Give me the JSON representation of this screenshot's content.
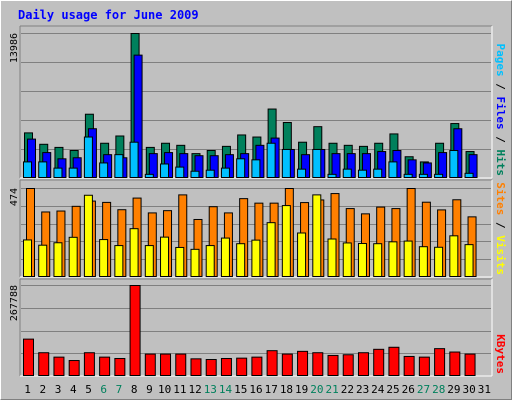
{
  "title": "Daily usage for June 2009",
  "colors": {
    "background": "#c0c0c0",
    "title": "#0000ff",
    "hits": "#00805c",
    "files": "#0000ff",
    "pages": "#00c0ff",
    "visits": "#ffff00",
    "sites": "#ff8000",
    "kbytes": "#ff0000",
    "weekend": "#00805c"
  },
  "panels": {
    "top": {
      "max_label": "13986",
      "legend": [
        "Pages",
        "Files",
        "Hits"
      ]
    },
    "middle": {
      "max_label": "474",
      "legend": [
        "Sites",
        "Visits"
      ]
    },
    "bottom": {
      "max_label": "267788",
      "legend": [
        "KBytes"
      ]
    }
  },
  "chart_data": {
    "type": "bar",
    "title": "Daily usage for June 2009",
    "categories": [
      "1",
      "2",
      "3",
      "4",
      "5",
      "6",
      "7",
      "8",
      "9",
      "10",
      "11",
      "12",
      "13",
      "14",
      "15",
      "16",
      "17",
      "18",
      "19",
      "20",
      "21",
      "22",
      "23",
      "24",
      "25",
      "26",
      "27",
      "28",
      "29",
      "30",
      "31"
    ],
    "weekend_days": [
      "6",
      "7",
      "13",
      "14",
      "20",
      "21",
      "27",
      "28"
    ],
    "panels": [
      {
        "name": "top",
        "ylim": [
          0,
          13986
        ],
        "series": [
          {
            "name": "Hits",
            "values": [
              4400,
              3300,
              3000,
              2700,
              6200,
              3400,
              4100,
              13986,
              3000,
              3400,
              3200,
              2400,
              2700,
              3100,
              4200,
              4000,
              6700,
              5400,
              3500,
              5000,
              3400,
              3200,
              3100,
              3400,
              4300,
              2100,
              1600,
              3400,
              5300,
              2600,
              0
            ]
          },
          {
            "name": "Files",
            "values": [
              3800,
              2500,
              1900,
              2000,
              4800,
              2300,
              2000,
              11900,
              2400,
              2500,
              2400,
              2200,
              2200,
              2300,
              2400,
              3200,
              3900,
              2800,
              2300,
              2800,
              2400,
              2400,
              2400,
              2600,
              2700,
              1800,
              1500,
              2500,
              4800,
              2300,
              0
            ]
          },
          {
            "name": "Pages",
            "values": [
              1600,
              1600,
              1000,
              1000,
              4000,
              1500,
              2300,
              3500,
              400,
              1400,
              1100,
              700,
              800,
              1000,
              1900,
              1800,
              3400,
              2800,
              900,
              2800,
              400,
              900,
              800,
              900,
              1600,
              400,
              400,
              400,
              2700,
              500,
              0
            ]
          }
        ]
      },
      {
        "name": "middle",
        "ylim": [
          0,
          474
        ],
        "series": [
          {
            "name": "Sites",
            "values": [
              474,
              349,
              354,
              379,
              407,
              400,
              361,
              423,
              344,
              356,
              440,
              309,
              377,
              344,
              420,
              396,
              396,
              474,
              399,
              413,
              447,
              367,
              339,
              375,
              367,
              474,
              401,
              360,
              414,
              323,
              0
            ]
          },
          {
            "name": "Visits",
            "values": [
              200,
              172,
              185,
              214,
              438,
              202,
              170,
              260,
              170,
              215,
              160,
              150,
              170,
              210,
              180,
              199,
              292,
              383,
              237,
              440,
              205,
              184,
              181,
              180,
              190,
              194,
              164,
              161,
              222,
              175,
              0
            ]
          }
        ]
      },
      {
        "name": "bottom",
        "ylim": [
          0,
          267788
        ],
        "series": [
          {
            "name": "KBytes",
            "values": [
              110000,
              70000,
              57000,
              47000,
              70000,
              57000,
              53000,
              267788,
              66000,
              66000,
              66000,
              52000,
              50000,
              53000,
              54000,
              57000,
              76000,
              66000,
              74000,
              70000,
              62000,
              64000,
              70000,
              80000,
              86000,
              59000,
              57000,
              82000,
              72000,
              66000,
              0
            ]
          }
        ]
      }
    ]
  }
}
